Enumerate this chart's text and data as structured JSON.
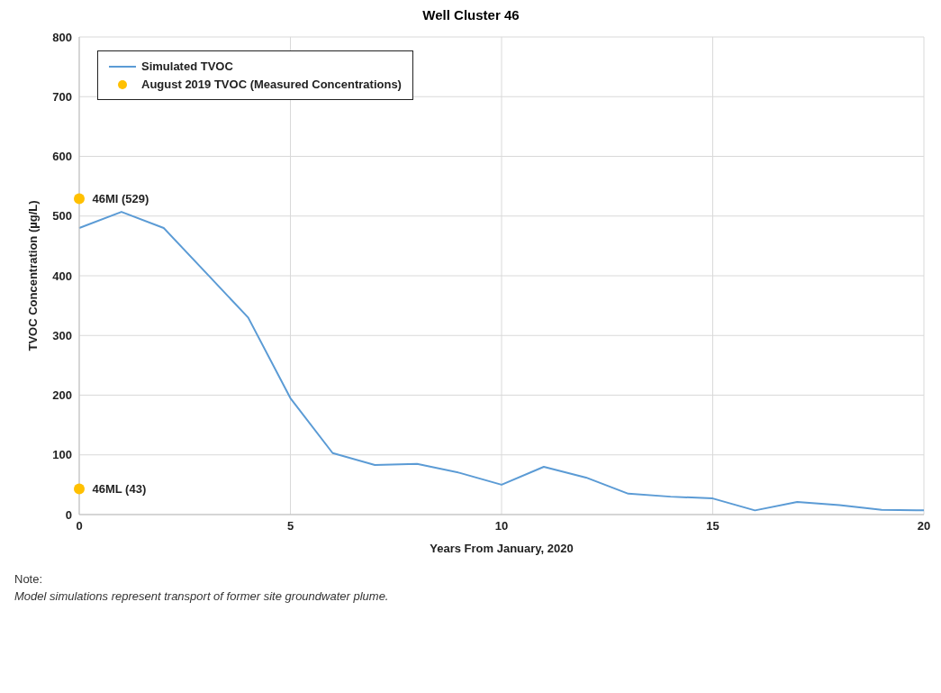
{
  "chart_data": {
    "type": "line",
    "title": "Well Cluster 46",
    "xlabel": "Years From January, 2020",
    "ylabel": "TVOC Concentration (µg/L)",
    "x": [
      0,
      1,
      2,
      3,
      4,
      5,
      6,
      7,
      8,
      9,
      10,
      11,
      12,
      13,
      14,
      15,
      16,
      17,
      18,
      19,
      20
    ],
    "series": [
      {
        "name": "Simulated TVOC",
        "color": "#5b9bd5",
        "marker": "none",
        "values": [
          480,
          507,
          480,
          405,
          330,
          195,
          103,
          83,
          85,
          70,
          50,
          80,
          62,
          35,
          30,
          27,
          7,
          21,
          16,
          8,
          7
        ]
      },
      {
        "name": "August 2019 TVOC (Measured Concentrations)",
        "type": "scatter",
        "color": "#ffc000",
        "marker": "circle",
        "x": [
          0,
          0
        ],
        "values": [
          529,
          43
        ],
        "value_labels": [
          "46MI (529)",
          "46ML (43)"
        ]
      }
    ],
    "xlim": [
      0,
      20
    ],
    "xticks": [
      0,
      5,
      10,
      15,
      20
    ],
    "ylim": [
      0,
      800
    ],
    "yticks": [
      0,
      100,
      200,
      300,
      400,
      500,
      600,
      700,
      800
    ],
    "grid": true,
    "legend": "top left",
    "line_style": "solid",
    "annotations": [
      "Note:",
      "Model simulations represent transport of former site groundwater plume."
    ]
  }
}
